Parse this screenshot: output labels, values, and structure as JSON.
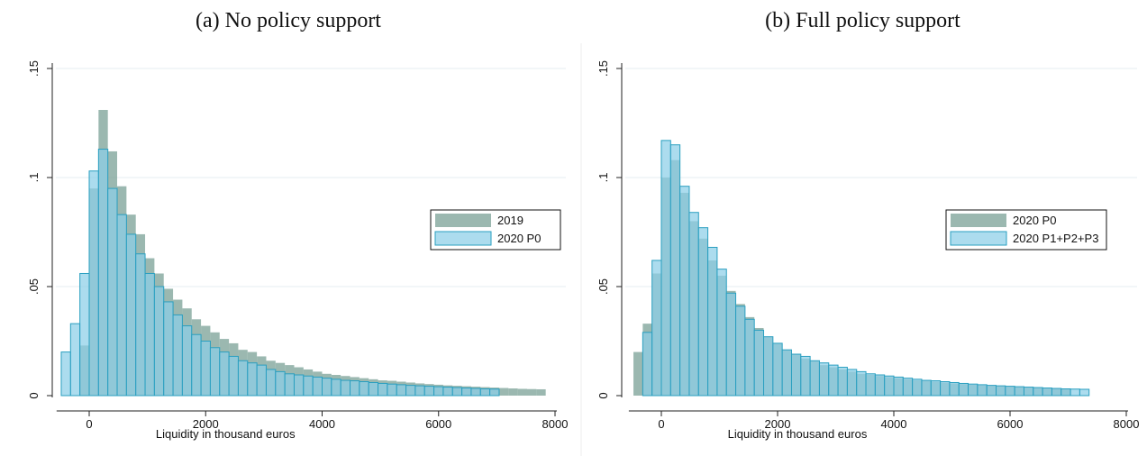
{
  "colors": {
    "series_gray": "#7fa49a",
    "series_blue": "#8ccfe8",
    "series_blue_edge": "#2a9fc0",
    "grid": "#e6eef0",
    "axis": "#222222"
  },
  "chart_data": [
    {
      "type": "bar",
      "subtype": "overlaid-histogram",
      "title": "(a) No policy support",
      "xlabel": "Liquidity in thousand euros",
      "ylabel": "",
      "xlim": [
        -600,
        8000
      ],
      "ylim": [
        0,
        0.15
      ],
      "xticks": [
        0,
        2000,
        4000,
        6000,
        8000
      ],
      "yticks": [
        0,
        0.05,
        0.1,
        0.15
      ],
      "ytick_labels": [
        "0",
        ".05",
        ".1",
        ".15"
      ],
      "bin_width": 160,
      "grid": true,
      "legend_position": "right",
      "series": [
        {
          "name": "2019",
          "color": "#7fa49a",
          "bin_start": -160,
          "values": [
            0.023,
            0.095,
            0.131,
            0.112,
            0.096,
            0.083,
            0.074,
            0.063,
            0.056,
            0.049,
            0.044,
            0.04,
            0.035,
            0.032,
            0.029,
            0.026,
            0.024,
            0.021,
            0.02,
            0.018,
            0.016,
            0.015,
            0.014,
            0.013,
            0.012,
            0.011,
            0.01,
            0.0095,
            0.009,
            0.0085,
            0.008,
            0.0075,
            0.007,
            0.0068,
            0.0064,
            0.006,
            0.0056,
            0.0053,
            0.005,
            0.0047,
            0.0045,
            0.0043,
            0.0041,
            0.0039,
            0.0037,
            0.0035,
            0.0033,
            0.0031,
            0.003,
            0.0029
          ]
        },
        {
          "name": "2020 P0",
          "color": "#8ccfe8",
          "bin_start": -480,
          "values": [
            0.02,
            0.033,
            0.056,
            0.103,
            0.113,
            0.095,
            0.083,
            0.074,
            0.065,
            0.056,
            0.05,
            0.043,
            0.037,
            0.032,
            0.028,
            0.025,
            0.022,
            0.02,
            0.018,
            0.016,
            0.015,
            0.014,
            0.012,
            0.011,
            0.01,
            0.0095,
            0.009,
            0.0085,
            0.008,
            0.0075,
            0.007,
            0.0068,
            0.0064,
            0.006,
            0.0056,
            0.0053,
            0.005,
            0.0047,
            0.0045,
            0.0043,
            0.0041,
            0.0039,
            0.0037,
            0.0035,
            0.0033,
            0.0031,
            0.003
          ]
        }
      ]
    },
    {
      "type": "bar",
      "subtype": "overlaid-histogram",
      "title": "(b) Full policy support",
      "xlabel": "Liquidity in thousand euros",
      "ylabel": "",
      "xlim": [
        -600,
        8000
      ],
      "ylim": [
        0,
        0.15
      ],
      "xticks": [
        0,
        2000,
        4000,
        6000,
        8000
      ],
      "yticks": [
        0,
        0.05,
        0.1,
        0.15
      ],
      "ytick_labels": [
        "0",
        ".05",
        ".1",
        ".15"
      ],
      "bin_width": 160,
      "grid": true,
      "legend_position": "right",
      "series": [
        {
          "name": "2020 P0",
          "color": "#7fa49a",
          "bin_start": -480,
          "values": [
            0.02,
            0.033,
            0.056,
            0.1,
            0.108,
            0.093,
            0.08,
            0.072,
            0.062,
            0.055,
            0.048,
            0.042,
            0.036,
            0.031,
            0.027,
            0.024,
            0.021,
            0.019,
            0.017,
            0.016,
            0.014,
            0.013,
            0.012,
            0.011,
            0.01,
            0.0095,
            0.009,
            0.0085,
            0.008,
            0.0075,
            0.007,
            0.0068,
            0.0064,
            0.006,
            0.0056,
            0.0053,
            0.005,
            0.0047,
            0.0045,
            0.0043,
            0.0041,
            0.0039,
            0.0037,
            0.0035,
            0.0033,
            0.0031,
            0.003
          ]
        },
        {
          "name": "2020 P1+P2+P3",
          "color": "#8ccfe8",
          "bin_start": -320,
          "values": [
            0.029,
            0.062,
            0.117,
            0.115,
            0.096,
            0.084,
            0.077,
            0.068,
            0.058,
            0.047,
            0.041,
            0.035,
            0.03,
            0.027,
            0.024,
            0.021,
            0.019,
            0.018,
            0.016,
            0.015,
            0.014,
            0.013,
            0.012,
            0.011,
            0.01,
            0.0095,
            0.009,
            0.0085,
            0.008,
            0.0075,
            0.007,
            0.0068,
            0.0064,
            0.006,
            0.0056,
            0.0053,
            0.005,
            0.0047,
            0.0045,
            0.0043,
            0.0041,
            0.0039,
            0.0037,
            0.0035,
            0.0033,
            0.0031,
            0.003,
            0.0029
          ]
        }
      ]
    }
  ]
}
